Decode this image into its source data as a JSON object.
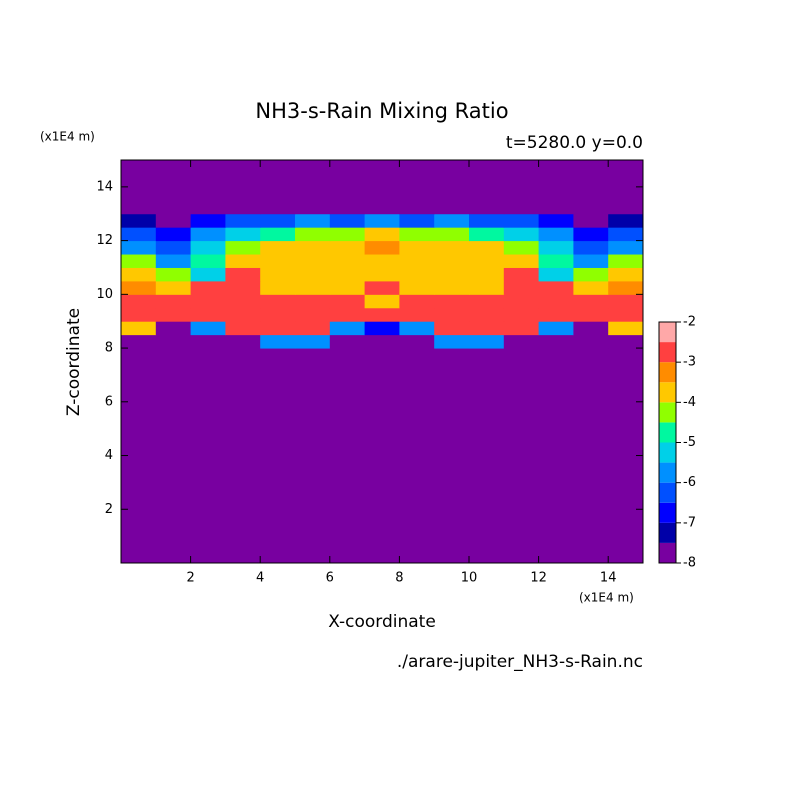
{
  "chart_data": {
    "type": "contour",
    "title": "NH3-s-Rain Mixing Ratio",
    "subtitle": "t=5280.0 y=0.0",
    "x_label": "X-coordinate",
    "y_label": "Z-coordinate",
    "x_unit": "(x1E4 m)",
    "y_unit": "(x1E4 m)",
    "footer": "./arare-jupiter_NH3-s-Rain.nc",
    "xlim": [
      0,
      15
    ],
    "ylim": [
      0,
      15
    ],
    "xticks": [
      2,
      4,
      6,
      8,
      10,
      12,
      14
    ],
    "yticks": [
      2,
      4,
      6,
      8,
      10,
      12,
      14
    ],
    "x_edges": [
      0,
      1,
      2,
      3,
      4,
      5,
      6,
      7,
      8,
      9,
      10,
      11,
      12,
      13,
      14,
      15
    ],
    "y_edges": [
      0,
      8,
      8.5,
      9,
      9.5,
      10,
      10.5,
      11,
      11.5,
      12,
      12.5,
      13,
      15
    ],
    "z": [
      [
        -8,
        -8,
        -8,
        -8,
        -8,
        -8,
        -8,
        -8,
        -8,
        -8,
        -8,
        -8,
        -8,
        -8,
        -8
      ],
      [
        -8,
        -8,
        -8,
        -8,
        -6,
        -6,
        -8,
        -8,
        -8,
        -6,
        -6,
        -8,
        -8,
        -8,
        -8
      ],
      [
        -4,
        -8,
        -6,
        -3,
        -3,
        -2.8,
        -6,
        -7,
        -6,
        -2.8,
        -3,
        -3,
        -6,
        -8,
        -4
      ],
      [
        -3,
        -3,
        -3,
        -2.8,
        -2.8,
        -3,
        -2.8,
        -2.8,
        -2.8,
        -3,
        -2.8,
        -2.8,
        -3,
        -3,
        -3
      ],
      [
        -3,
        -2.8,
        -2.8,
        -2.8,
        -2.8,
        -2.8,
        -3,
        -3.8,
        -3,
        -2.8,
        -2.8,
        -2.8,
        -2.8,
        -2.8,
        -3
      ],
      [
        -3.3,
        -3.8,
        -3,
        -2.8,
        -3.8,
        -3.8,
        -4,
        -3,
        -4,
        -3.8,
        -3.8,
        -2.8,
        -3,
        -3.8,
        -3.3
      ],
      [
        -4,
        -4.5,
        -5.5,
        -3,
        -3.8,
        -4,
        -3.8,
        -3.8,
        -3.8,
        -4,
        -3.8,
        -3,
        -5.5,
        -4.5,
        -4
      ],
      [
        -4.5,
        -6,
        -5,
        -4,
        -4,
        -3.8,
        -3.8,
        -3.8,
        -3.8,
        -3.8,
        -4,
        -4,
        -5,
        -6,
        -4.5
      ],
      [
        -6,
        -6.5,
        -5.5,
        -4.5,
        -4,
        -4,
        -4,
        -3.3,
        -4,
        -4,
        -4,
        -4.5,
        -5.5,
        -6.5,
        -6
      ],
      [
        -6.5,
        -7,
        -6,
        -5.5,
        -5,
        -4.5,
        -4.5,
        -4,
        -4.5,
        -4.5,
        -5,
        -5.5,
        -6,
        -7,
        -6.5
      ],
      [
        -7.5,
        -8,
        -7,
        -6.5,
        -6.5,
        -6,
        -6.5,
        -6,
        -6.5,
        -6,
        -6.5,
        -6.5,
        -7,
        -8,
        -7.5
      ],
      [
        -8,
        -8,
        -8,
        -8,
        -8,
        -8,
        -8,
        -8,
        -8,
        -8,
        -8,
        -8,
        -8,
        -8,
        -8
      ]
    ],
    "levels": [
      -8,
      -7.5,
      -7,
      -6.5,
      -6,
      -5.5,
      -5,
      -4.5,
      -4,
      -3.5,
      -3,
      -2.5,
      -2
    ],
    "colors": [
      "#7800a0",
      "#0000a8",
      "#0000ff",
      "#0050ff",
      "#0090ff",
      "#00d0e8",
      "#00f8a0",
      "#90ff00",
      "#ffc800",
      "#ff8c00",
      "#ff4040",
      "#ffa8a8"
    ],
    "cbar_ticks": [
      -8,
      -7,
      -6,
      -5,
      -4,
      -3,
      -2
    ]
  }
}
